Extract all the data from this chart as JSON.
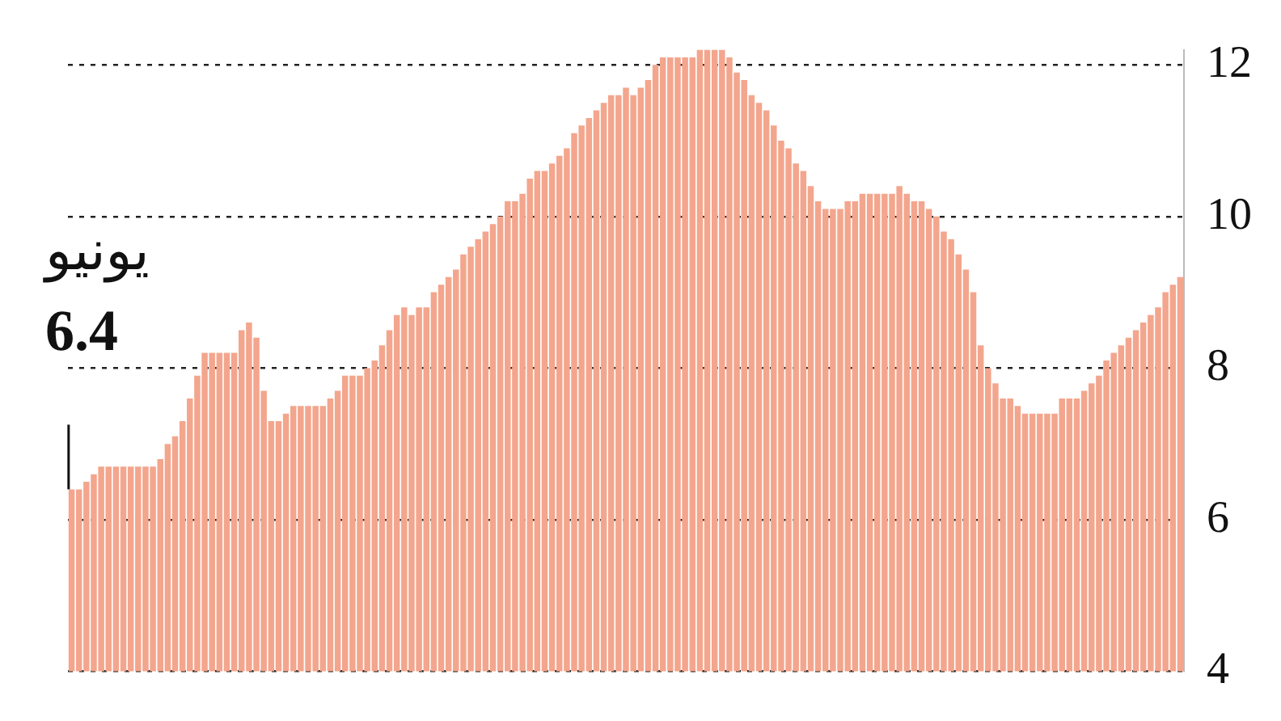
{
  "chart_data": {
    "type": "bar",
    "categories": [
      null,
      null,
      null,
      null,
      null,
      null,
      null,
      null,
      null,
      null,
      null,
      null,
      null,
      null,
      null,
      null,
      null,
      null,
      null,
      null,
      null,
      null,
      null,
      null,
      null,
      null,
      null,
      null,
      null,
      null,
      null,
      null,
      null,
      null,
      null,
      null,
      null,
      null,
      null,
      null,
      null,
      null,
      null,
      null,
      null,
      null,
      null,
      null,
      null,
      null,
      null,
      null,
      null,
      null,
      null,
      null,
      null,
      null,
      null,
      null,
      null,
      null,
      null,
      null,
      null,
      null,
      null,
      null,
      null,
      null,
      null,
      null,
      null,
      null,
      null,
      null,
      null,
      null,
      null,
      null,
      null,
      null,
      null,
      null,
      null,
      null,
      null,
      null,
      null,
      null,
      null,
      null,
      null,
      null,
      null,
      null,
      null,
      null,
      null,
      null,
      null,
      null,
      null,
      null,
      null,
      null,
      null,
      null,
      null,
      null,
      null,
      null,
      null,
      null,
      null,
      null,
      null,
      null,
      null,
      null,
      null,
      null,
      null,
      null,
      null,
      null,
      null,
      null,
      null,
      null,
      null,
      null,
      null,
      null,
      null,
      null,
      null,
      null,
      null,
      null,
      null,
      null,
      null,
      null,
      null,
      null,
      null,
      null,
      null,
      null,
      null
    ],
    "values": [
      6.4,
      6.4,
      6.5,
      6.6,
      6.7,
      6.7,
      6.7,
      6.7,
      6.7,
      6.7,
      6.7,
      6.7,
      6.8,
      7.0,
      7.1,
      7.3,
      7.6,
      7.9,
      8.2,
      8.2,
      8.2,
      8.2,
      8.2,
      8.5,
      8.6,
      8.4,
      7.7,
      7.3,
      7.3,
      7.4,
      7.5,
      7.5,
      7.5,
      7.5,
      7.5,
      7.6,
      7.7,
      7.9,
      7.9,
      7.9,
      8.0,
      8.1,
      8.3,
      8.5,
      8.7,
      8.8,
      8.7,
      8.8,
      8.8,
      9.0,
      9.1,
      9.2,
      9.3,
      9.5,
      9.6,
      9.7,
      9.8,
      9.9,
      10.0,
      10.2,
      10.2,
      10.3,
      10.5,
      10.6,
      10.6,
      10.7,
      10.8,
      10.9,
      11.1,
      11.2,
      11.3,
      11.4,
      11.5,
      11.6,
      11.6,
      11.7,
      11.6,
      11.7,
      11.8,
      12.0,
      12.1,
      12.1,
      12.1,
      12.1,
      12.1,
      12.2,
      12.2,
      12.2,
      12.2,
      12.1,
      11.9,
      11.8,
      11.6,
      11.5,
      11.4,
      11.2,
      11.0,
      10.9,
      10.7,
      10.6,
      10.4,
      10.2,
      10.1,
      10.1,
      10.1,
      10.2,
      10.2,
      10.3,
      10.3,
      10.3,
      10.3,
      10.3,
      10.4,
      10.3,
      10.2,
      10.2,
      10.1,
      10.0,
      9.8,
      9.7,
      9.5,
      9.3,
      9.0,
      8.3,
      8.0,
      7.8,
      7.6,
      7.6,
      7.5,
      7.4,
      7.4,
      7.4,
      7.4,
      7.4,
      7.6,
      7.6,
      7.6,
      7.7,
      7.8,
      7.9,
      8.1,
      8.2,
      8.3,
      8.4,
      8.5,
      8.6,
      8.7,
      8.8,
      9.0,
      9.1,
      9.2
    ],
    "value_labels": [
      "6.4",
      null,
      null,
      null,
      null,
      null,
      null,
      null,
      null,
      null,
      null,
      null,
      null,
      null,
      null,
      null,
      null,
      null,
      null,
      null,
      null,
      null,
      null,
      null,
      null,
      null,
      null,
      null,
      null,
      null,
      null,
      null,
      null,
      null,
      null,
      null,
      null,
      null,
      null,
      null,
      null,
      null,
      null,
      null,
      null,
      null,
      null,
      null,
      null,
      null,
      null,
      null,
      null,
      null,
      null,
      null,
      null,
      null,
      null,
      null,
      null,
      null,
      null,
      null,
      null,
      null,
      null,
      null,
      null,
      null,
      null,
      null,
      null,
      null,
      null,
      null,
      null,
      null,
      null,
      null,
      null,
      null,
      null,
      null,
      null,
      null,
      null,
      null,
      null,
      null,
      null,
      null,
      null,
      null,
      null,
      null,
      null,
      null,
      null,
      null,
      null,
      null,
      null,
      null,
      null,
      null,
      null,
      null,
      null,
      null,
      null,
      null,
      null,
      null,
      null,
      null,
      null,
      null,
      null,
      null,
      null,
      null,
      null,
      null,
      null,
      null,
      null,
      null,
      null,
      null,
      null,
      null,
      null,
      null,
      null,
      null,
      null,
      null,
      null,
      null,
      null,
      null,
      null,
      null,
      null,
      null,
      null,
      null,
      null,
      null,
      null
    ],
    "annotations": [
      "يونيو"
    ],
    "color": "#f3a68d",
    "ylim": [
      4,
      12.2
    ],
    "yticks": [
      4,
      6,
      8,
      10,
      12
    ],
    "grid": "y"
  }
}
